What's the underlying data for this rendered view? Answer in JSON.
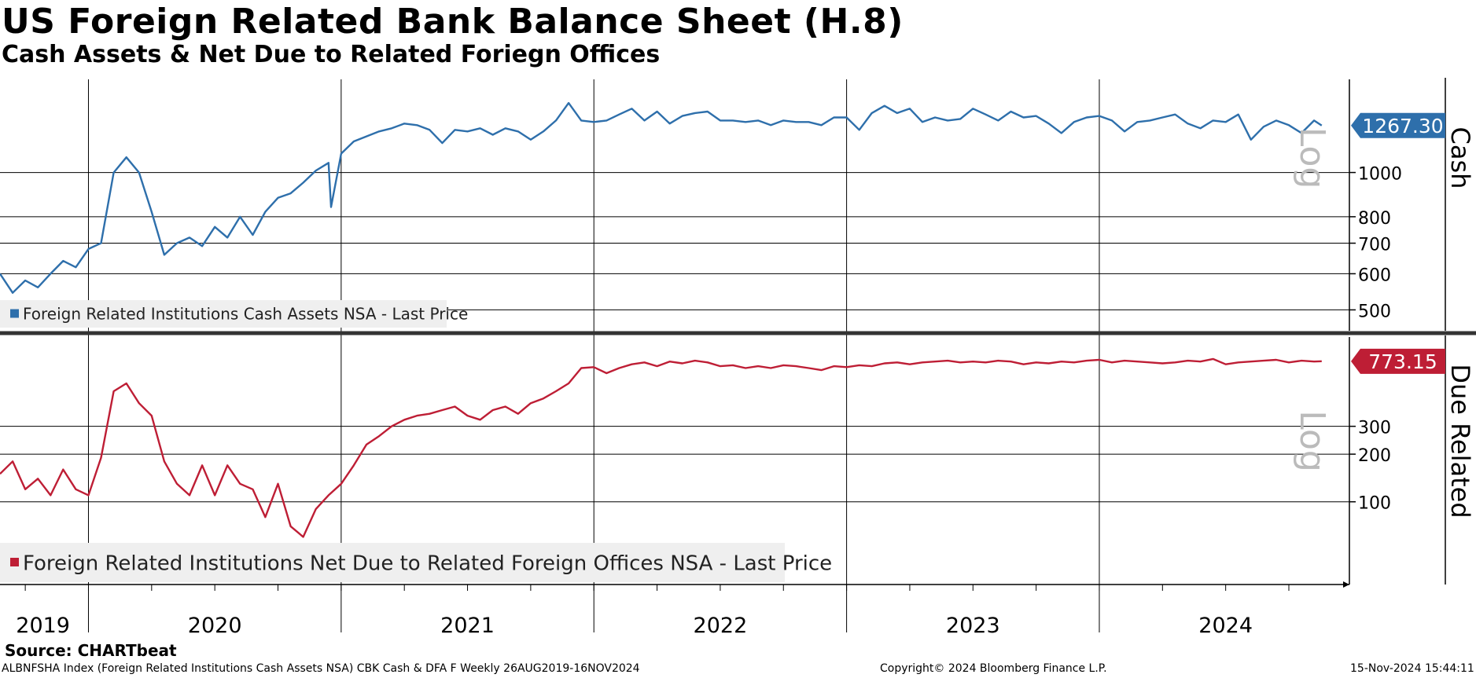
{
  "title": "US Foreign Related Bank Balance Sheet (H.8)",
  "subtitle": "Cash Assets & Net Due to Related Foriegn Offices",
  "source": "Source:  CHARTbeat",
  "footer": {
    "left": "ALBNFSHA Index (Foreign Related Institutions Cash Assets NSA) CBK Cash & DFA F  Weekly 26AUG2019-16NOV2024",
    "center": "Copyright© 2024 Bloomberg Finance L.P.",
    "right": "15-Nov-2024 15:44:11"
  },
  "colors": {
    "cash": "#2e6fab",
    "due": "#be1e35",
    "grid": "#000000",
    "log_text": "#bbbbbb"
  },
  "chart_data": [
    {
      "type": "line",
      "panel": "top",
      "scale": "log",
      "axis_title": "Cash",
      "axis_tag": "Log",
      "ylim": [
        450,
        1600
      ],
      "yticks": [
        500,
        600,
        700,
        800,
        1000
      ],
      "ytick_labels": [
        "500",
        "600",
        "700",
        "800",
        "1000"
      ],
      "last_value": 1267.3,
      "last_label": "1267.30",
      "series": [
        {
          "name": "Foreign Related Institutions Cash Assets NSA - Last Price",
          "legend": "Foreign Related Institutions Cash Assets NSA - Last Price",
          "x": [
            2019.65,
            2019.7,
            2019.75,
            2019.8,
            2019.85,
            2019.9,
            2019.95,
            2020.0,
            2020.05,
            2020.1,
            2020.15,
            2020.2,
            2020.25,
            2020.3,
            2020.35,
            2020.4,
            2020.45,
            2020.5,
            2020.55,
            2020.6,
            2020.65,
            2020.7,
            2020.75,
            2020.8,
            2020.85,
            2020.9,
            2020.95,
            2020.96,
            2021.0,
            2021.05,
            2021.1,
            2021.15,
            2021.2,
            2021.25,
            2021.3,
            2021.35,
            2021.4,
            2021.45,
            2021.5,
            2021.55,
            2021.6,
            2021.65,
            2021.7,
            2021.75,
            2021.8,
            2021.85,
            2021.9,
            2021.95,
            2022.0,
            2022.05,
            2022.1,
            2022.15,
            2022.2,
            2022.25,
            2022.3,
            2022.35,
            2022.4,
            2022.45,
            2022.5,
            2022.55,
            2022.6,
            2022.65,
            2022.7,
            2022.75,
            2022.8,
            2022.85,
            2022.9,
            2022.95,
            2023.0,
            2023.05,
            2023.1,
            2023.15,
            2023.2,
            2023.25,
            2023.3,
            2023.35,
            2023.4,
            2023.45,
            2023.5,
            2023.55,
            2023.6,
            2023.65,
            2023.7,
            2023.75,
            2023.8,
            2023.85,
            2023.9,
            2023.95,
            2024.0,
            2024.05,
            2024.1,
            2024.15,
            2024.2,
            2024.25,
            2024.3,
            2024.35,
            2024.4,
            2024.45,
            2024.5,
            2024.55,
            2024.6,
            2024.65,
            2024.7,
            2024.75,
            2024.8,
            2024.85,
            2024.88
          ],
          "values": [
            600,
            545,
            580,
            560,
            600,
            640,
            620,
            680,
            700,
            1000,
            1080,
            1000,
            820,
            660,
            700,
            720,
            690,
            760,
            720,
            800,
            730,
            820,
            880,
            900,
            950,
            1010,
            1050,
            840,
            1100,
            1170,
            1200,
            1230,
            1250,
            1280,
            1270,
            1240,
            1160,
            1240,
            1230,
            1250,
            1210,
            1250,
            1230,
            1180,
            1230,
            1300,
            1420,
            1300,
            1290,
            1300,
            1340,
            1380,
            1300,
            1360,
            1280,
            1330,
            1350,
            1360,
            1300,
            1300,
            1290,
            1300,
            1270,
            1300,
            1290,
            1290,
            1270,
            1320,
            1320,
            1240,
            1350,
            1400,
            1350,
            1380,
            1290,
            1320,
            1300,
            1310,
            1380,
            1340,
            1300,
            1360,
            1320,
            1330,
            1280,
            1220,
            1290,
            1320,
            1330,
            1300,
            1230,
            1290,
            1300,
            1320,
            1340,
            1280,
            1250,
            1300,
            1290,
            1340,
            1180,
            1260,
            1300,
            1270,
            1220,
            1300,
            1267.3
          ]
        }
      ]
    },
    {
      "type": "line",
      "panel": "bottom",
      "scale": "log",
      "axis_title": "Due Related",
      "axis_tag": "Log",
      "ylim": [
        30,
        1100
      ],
      "yticks": [
        100,
        200,
        300
      ],
      "ytick_labels": [
        "100",
        "200",
        "300"
      ],
      "last_value": 773.15,
      "last_label": "773.15",
      "series": [
        {
          "name": "Foreign Related Institutions Net Due to Related Foreign Offices NSA - Last Price",
          "legend": "Foreign Related Institutions Net Due to Related Foreign Offices NSA - Last Price",
          "x": [
            2019.65,
            2019.7,
            2019.75,
            2019.8,
            2019.85,
            2019.9,
            2019.95,
            2020.0,
            2020.05,
            2020.1,
            2020.15,
            2020.2,
            2020.25,
            2020.3,
            2020.35,
            2020.4,
            2020.45,
            2020.5,
            2020.55,
            2020.6,
            2020.65,
            2020.7,
            2020.75,
            2020.8,
            2020.85,
            2020.9,
            2020.95,
            2021.0,
            2021.05,
            2021.1,
            2021.15,
            2021.2,
            2021.25,
            2021.3,
            2021.35,
            2021.4,
            2021.45,
            2021.5,
            2021.55,
            2021.6,
            2021.65,
            2021.7,
            2021.75,
            2021.8,
            2021.85,
            2021.9,
            2021.95,
            2022.0,
            2022.05,
            2022.1,
            2022.15,
            2022.2,
            2022.25,
            2022.3,
            2022.35,
            2022.4,
            2022.45,
            2022.5,
            2022.55,
            2022.6,
            2022.65,
            2022.7,
            2022.75,
            2022.8,
            2022.85,
            2022.9,
            2022.95,
            2023.0,
            2023.05,
            2023.1,
            2023.15,
            2023.2,
            2023.25,
            2023.3,
            2023.35,
            2023.4,
            2023.45,
            2023.5,
            2023.55,
            2023.6,
            2023.65,
            2023.7,
            2023.75,
            2023.8,
            2023.85,
            2023.9,
            2023.95,
            2024.0,
            2024.05,
            2024.1,
            2024.15,
            2024.2,
            2024.25,
            2024.3,
            2024.35,
            2024.4,
            2024.45,
            2024.5,
            2024.55,
            2024.6,
            2024.65,
            2024.7,
            2024.75,
            2024.8,
            2024.85,
            2024.88
          ],
          "values": [
            150,
            180,
            120,
            140,
            110,
            160,
            120,
            110,
            190,
            500,
            560,
            420,
            350,
            180,
            130,
            110,
            170,
            110,
            170,
            130,
            120,
            80,
            130,
            70,
            60,
            90,
            110,
            130,
            170,
            230,
            260,
            300,
            330,
            350,
            360,
            380,
            400,
            350,
            330,
            380,
            400,
            360,
            420,
            450,
            500,
            560,
            700,
            710,
            650,
            700,
            740,
            760,
            720,
            770,
            750,
            780,
            760,
            720,
            730,
            700,
            720,
            700,
            730,
            720,
            700,
            680,
            720,
            710,
            730,
            720,
            750,
            760,
            740,
            760,
            770,
            780,
            760,
            770,
            760,
            780,
            770,
            740,
            760,
            750,
            770,
            760,
            780,
            790,
            760,
            780,
            770,
            760,
            750,
            760,
            780,
            770,
            800,
            740,
            760,
            770,
            780,
            790,
            760,
            780,
            770,
            773.15
          ]
        }
      ]
    }
  ],
  "x_axis": {
    "range": [
      2019.65,
      2024.89
    ],
    "year_labels": [
      "2019",
      "2020",
      "2021",
      "2022",
      "2023",
      "2024"
    ],
    "year_label_positions": [
      2019.82,
      2020.5,
      2021.5,
      2022.5,
      2023.5,
      2024.5
    ],
    "year_boundaries": [
      2020.0,
      2021.0,
      2022.0,
      2023.0,
      2024.0
    ]
  }
}
